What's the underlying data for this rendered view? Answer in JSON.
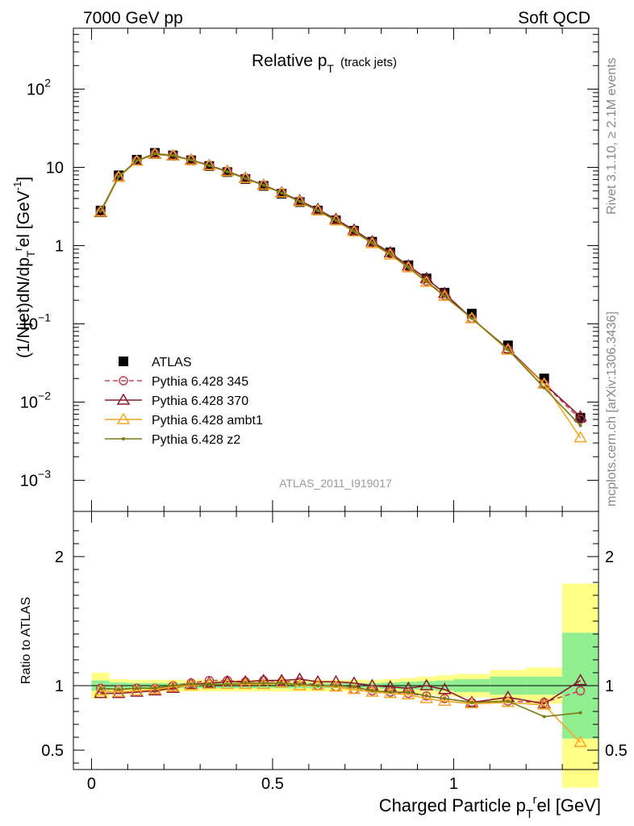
{
  "header": {
    "left": "7000 GeV pp",
    "right": "Soft QCD"
  },
  "side_labels": {
    "rivet": "Rivet 3.1.10, ≥ 2.1M events",
    "mcplots": "mcplots.cern.ch [arXiv:1306.3436]"
  },
  "chart_data": [
    {
      "type": "line",
      "title_main": "Relative p",
      "title_sub": "T",
      "title_extra": "(track jets)",
      "watermark": "ATLAS_2011_I919017",
      "ylabel": "(1/Njet)dN/dp",
      "ylabel_sub": "T",
      "ylabel_sup": "r",
      "ylabel_rest": "el [GeV",
      "ylabel_unit_sup": "-1",
      "yscale": "log",
      "xlim": [
        -0.05,
        1.4
      ],
      "ylim": [
        0.0004,
        600
      ],
      "x_ticks": [
        0,
        0.5,
        1
      ],
      "y_ticks": [
        {
          "value": 0.001,
          "mantissa": "10",
          "exp": "−3"
        },
        {
          "value": 0.01,
          "mantissa": "10",
          "exp": "−2"
        },
        {
          "value": 0.1,
          "mantissa": "10",
          "exp": "−1"
        },
        {
          "value": 1,
          "mantissa": "1",
          "exp": ""
        },
        {
          "value": 10,
          "mantissa": "10",
          "exp": ""
        },
        {
          "value": 100,
          "mantissa": "10",
          "exp": "2"
        }
      ],
      "legend_position": "bottom-left",
      "x": [
        0.025,
        0.075,
        0.125,
        0.175,
        0.225,
        0.275,
        0.325,
        0.375,
        0.425,
        0.475,
        0.525,
        0.575,
        0.625,
        0.675,
        0.725,
        0.775,
        0.825,
        0.875,
        0.925,
        0.975,
        1.05,
        1.15,
        1.25,
        1.35
      ],
      "series": [
        {
          "name": "ATLAS",
          "color": "#000000",
          "marker": "square",
          "values": [
            2.8,
            7.9,
            12.5,
            15.3,
            14.2,
            12.3,
            10.4,
            8.7,
            7.1,
            5.8,
            4.6,
            3.6,
            2.8,
            2.1,
            1.55,
            1.12,
            0.82,
            0.56,
            0.38,
            0.25,
            0.135,
            0.053,
            0.02,
            0.0063
          ]
        },
        {
          "name": "Pythia 6.428 345",
          "color": "#c0405a",
          "marker": "circle",
          "dash": "6,4",
          "values": [
            2.7,
            7.6,
            12.2,
            15.0,
            14.3,
            12.5,
            10.6,
            8.9,
            7.3,
            5.95,
            4.75,
            3.7,
            2.8,
            2.1,
            1.55,
            1.09,
            0.79,
            0.53,
            0.35,
            0.23,
            0.118,
            0.047,
            0.017,
            0.006
          ]
        },
        {
          "name": "Pythia 6.428 370",
          "color": "#8b1a2e",
          "marker": "triangle",
          "values": [
            2.65,
            7.5,
            12.0,
            14.7,
            14.0,
            12.4,
            10.6,
            8.9,
            7.3,
            5.95,
            4.75,
            3.75,
            2.9,
            2.17,
            1.58,
            1.12,
            0.81,
            0.55,
            0.38,
            0.245,
            0.117,
            0.048,
            0.0172,
            0.0065
          ]
        },
        {
          "name": "Pythia 6.428 ambt1",
          "color": "#f5a623",
          "marker": "triangle",
          "values": [
            2.7,
            7.5,
            12.0,
            14.8,
            14.1,
            12.3,
            10.5,
            8.8,
            7.2,
            5.9,
            4.7,
            3.65,
            2.8,
            2.08,
            1.5,
            1.06,
            0.76,
            0.52,
            0.34,
            0.225,
            0.117,
            0.046,
            0.017,
            0.0035
          ]
        },
        {
          "name": "Pythia 6.428 z2",
          "color": "#7a7a12",
          "marker": "dot",
          "values": [
            2.75,
            7.7,
            12.2,
            15.0,
            14.2,
            12.4,
            10.5,
            8.8,
            7.2,
            5.9,
            4.7,
            3.65,
            2.8,
            2.1,
            1.53,
            1.08,
            0.78,
            0.53,
            0.35,
            0.226,
            0.118,
            0.047,
            0.0152,
            0.005
          ]
        }
      ]
    },
    {
      "type": "line",
      "ylabel": "Ratio to ATLAS",
      "xlabel_main": "Charged Particle p",
      "xlabel_sub": "T",
      "xlabel_sup": "r",
      "xlabel_rest": "el [GeV]",
      "xlim": [
        -0.05,
        1.4
      ],
      "ylim": [
        0.35,
        2.35
      ],
      "x_ticks": [
        0,
        0.5,
        1
      ],
      "y_ticks": [
        0.5,
        1,
        2
      ],
      "reference_line": 1,
      "bands": {
        "x_edges": [
          0.0,
          0.05,
          0.1,
          0.15,
          0.2,
          0.25,
          0.3,
          0.35,
          0.4,
          0.45,
          0.5,
          0.55,
          0.6,
          0.65,
          0.7,
          0.75,
          0.8,
          0.85,
          0.9,
          0.95,
          1.0,
          1.1,
          1.2,
          1.3,
          1.4
        ],
        "stat_half_width": [
          0.04,
          0.025,
          0.02,
          0.02,
          0.02,
          0.02,
          0.02,
          0.02,
          0.02,
          0.02,
          0.02,
          0.02,
          0.02,
          0.02,
          0.02,
          0.02,
          0.025,
          0.03,
          0.035,
          0.04,
          0.05,
          0.07,
          0.07,
          0.41
        ],
        "total_half_width": [
          0.1,
          0.05,
          0.045,
          0.045,
          0.045,
          0.045,
          0.045,
          0.045,
          0.045,
          0.045,
          0.045,
          0.045,
          0.045,
          0.045,
          0.045,
          0.045,
          0.05,
          0.06,
          0.07,
          0.08,
          0.09,
          0.12,
          0.14,
          0.79
        ],
        "stat_color": "#90ee90",
        "total_color": "#ffff88"
      },
      "series": [
        {
          "name": "Pythia 6.428 345",
          "color": "#c0405a",
          "marker": "circle",
          "dash": "6,4",
          "values": [
            0.98,
            0.97,
            0.98,
            0.98,
            1.0,
            1.02,
            1.04,
            1.04,
            1.03,
            1.04,
            1.03,
            1.03,
            1.0,
            0.99,
            0.97,
            0.96,
            0.95,
            0.94,
            0.92,
            0.9,
            0.87,
            0.88,
            0.87,
            0.96
          ]
        },
        {
          "name": "Pythia 6.428 370",
          "color": "#8b1a2e",
          "marker": "triangle",
          "values": [
            0.94,
            0.94,
            0.95,
            0.96,
            0.98,
            1.01,
            1.02,
            1.03,
            1.03,
            1.04,
            1.04,
            1.05,
            1.03,
            1.03,
            1.02,
            1.0,
            0.99,
            0.98,
            1.0,
            0.97,
            0.87,
            0.91,
            0.86,
            1.04
          ]
        },
        {
          "name": "Pythia 6.428 ambt1",
          "color": "#f5a623",
          "marker": "triangle",
          "values": [
            0.96,
            0.95,
            0.96,
            0.97,
            0.99,
            1.0,
            1.01,
            1.01,
            1.01,
            1.01,
            1.02,
            1.0,
            1.0,
            0.99,
            0.97,
            0.95,
            0.94,
            0.93,
            0.9,
            0.88,
            0.86,
            0.87,
            0.85,
            0.56
          ]
        },
        {
          "name": "Pythia 6.428 z2",
          "color": "#7a7a12",
          "marker": "dot",
          "values": [
            0.98,
            0.97,
            0.98,
            0.98,
            1.0,
            1.01,
            1.01,
            1.01,
            1.02,
            1.02,
            1.02,
            1.01,
            1.0,
            1.0,
            0.99,
            0.96,
            0.95,
            0.95,
            0.92,
            0.9,
            0.87,
            0.88,
            0.76,
            0.79
          ]
        }
      ]
    }
  ]
}
